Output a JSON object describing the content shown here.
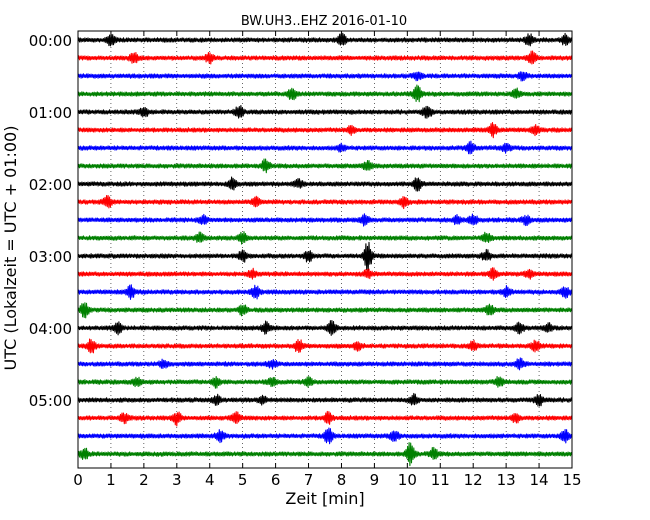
{
  "chart_data": {
    "type": "line",
    "title": "BW.UH3..EHZ 2016-01-10",
    "xlabel": "Zeit  [min]",
    "ylabel": "UTC (Lokalzeit = UTC + 01:00)",
    "xlim": [
      0,
      15
    ],
    "x_ticks": [
      "0",
      "1",
      "2",
      "3",
      "4",
      "5",
      "6",
      "7",
      "8",
      "9",
      "10",
      "11",
      "12",
      "13",
      "14",
      "15"
    ],
    "y_ticks": [
      "00:00",
      "01:00",
      "02:00",
      "03:00",
      "04:00",
      "05:00"
    ],
    "row_minutes": 15,
    "rows": 24,
    "trace_colors": [
      "#000000",
      "#ff0000",
      "#0000ff",
      "#008000"
    ],
    "grid": "vertical dotted lines at each minute",
    "events": [
      {
        "row": 0,
        "t": 1.0,
        "a": 0.8
      },
      {
        "row": 0,
        "t": 8.0,
        "a": 1.0
      },
      {
        "row": 0,
        "t": 13.7,
        "a": 0.9
      },
      {
        "row": 0,
        "t": 14.8,
        "a": 0.8
      },
      {
        "row": 1,
        "t": 1.7,
        "a": 0.8
      },
      {
        "row": 1,
        "t": 4.0,
        "a": 0.7
      },
      {
        "row": 1,
        "t": 13.8,
        "a": 1.0
      },
      {
        "row": 2,
        "t": 10.3,
        "a": 0.6
      },
      {
        "row": 2,
        "t": 13.5,
        "a": 0.6
      },
      {
        "row": 3,
        "t": 6.5,
        "a": 0.9
      },
      {
        "row": 3,
        "t": 10.3,
        "a": 1.2
      },
      {
        "row": 3,
        "t": 13.3,
        "a": 0.7
      },
      {
        "row": 4,
        "t": 2.0,
        "a": 0.8
      },
      {
        "row": 4,
        "t": 4.9,
        "a": 1.0
      },
      {
        "row": 4,
        "t": 10.6,
        "a": 1.1
      },
      {
        "row": 5,
        "t": 8.3,
        "a": 0.6
      },
      {
        "row": 5,
        "t": 12.6,
        "a": 1.0
      },
      {
        "row": 5,
        "t": 13.9,
        "a": 0.6
      },
      {
        "row": 6,
        "t": 8.0,
        "a": 0.5
      },
      {
        "row": 6,
        "t": 11.9,
        "a": 1.0
      },
      {
        "row": 6,
        "t": 13.0,
        "a": 0.6
      },
      {
        "row": 7,
        "t": 5.7,
        "a": 1.0
      },
      {
        "row": 7,
        "t": 8.8,
        "a": 0.8
      },
      {
        "row": 8,
        "t": 4.7,
        "a": 1.0
      },
      {
        "row": 8,
        "t": 6.7,
        "a": 0.6
      },
      {
        "row": 8,
        "t": 10.3,
        "a": 1.0
      },
      {
        "row": 9,
        "t": 0.9,
        "a": 0.9
      },
      {
        "row": 9,
        "t": 5.4,
        "a": 0.6
      },
      {
        "row": 9,
        "t": 9.9,
        "a": 0.8
      },
      {
        "row": 10,
        "t": 3.8,
        "a": 0.7
      },
      {
        "row": 10,
        "t": 8.7,
        "a": 0.8
      },
      {
        "row": 10,
        "t": 11.5,
        "a": 0.7
      },
      {
        "row": 10,
        "t": 12.0,
        "a": 0.8
      },
      {
        "row": 10,
        "t": 13.6,
        "a": 0.6
      },
      {
        "row": 11,
        "t": 3.7,
        "a": 0.7
      },
      {
        "row": 11,
        "t": 5.0,
        "a": 0.9
      },
      {
        "row": 11,
        "t": 12.4,
        "a": 0.7
      },
      {
        "row": 12,
        "t": 5.0,
        "a": 0.9
      },
      {
        "row": 12,
        "t": 7.0,
        "a": 0.9
      },
      {
        "row": 12,
        "t": 8.8,
        "a": 2.2
      },
      {
        "row": 12,
        "t": 12.4,
        "a": 0.8
      },
      {
        "row": 13,
        "t": 5.3,
        "a": 0.7
      },
      {
        "row": 13,
        "t": 8.8,
        "a": 0.6
      },
      {
        "row": 13,
        "t": 12.6,
        "a": 0.8
      },
      {
        "row": 13,
        "t": 13.7,
        "a": 0.6
      },
      {
        "row": 14,
        "t": 1.6,
        "a": 1.0
      },
      {
        "row": 14,
        "t": 5.4,
        "a": 0.9
      },
      {
        "row": 14,
        "t": 13.0,
        "a": 0.7
      },
      {
        "row": 14,
        "t": 14.8,
        "a": 0.8
      },
      {
        "row": 15,
        "t": 0.2,
        "a": 1.1
      },
      {
        "row": 15,
        "t": 5.0,
        "a": 0.8
      },
      {
        "row": 15,
        "t": 12.5,
        "a": 0.8
      },
      {
        "row": 16,
        "t": 1.2,
        "a": 0.9
      },
      {
        "row": 16,
        "t": 5.7,
        "a": 0.8
      },
      {
        "row": 16,
        "t": 7.7,
        "a": 1.0
      },
      {
        "row": 16,
        "t": 13.4,
        "a": 0.9
      },
      {
        "row": 16,
        "t": 14.3,
        "a": 0.6
      },
      {
        "row": 17,
        "t": 0.4,
        "a": 1.1
      },
      {
        "row": 17,
        "t": 6.7,
        "a": 1.0
      },
      {
        "row": 17,
        "t": 8.5,
        "a": 0.6
      },
      {
        "row": 17,
        "t": 12.0,
        "a": 0.7
      },
      {
        "row": 17,
        "t": 13.9,
        "a": 0.8
      },
      {
        "row": 18,
        "t": 2.6,
        "a": 0.6
      },
      {
        "row": 18,
        "t": 5.9,
        "a": 0.6
      },
      {
        "row": 18,
        "t": 13.4,
        "a": 0.9
      },
      {
        "row": 19,
        "t": 1.8,
        "a": 0.6
      },
      {
        "row": 19,
        "t": 4.2,
        "a": 0.7
      },
      {
        "row": 19,
        "t": 5.9,
        "a": 0.6
      },
      {
        "row": 19,
        "t": 7.0,
        "a": 0.6
      },
      {
        "row": 19,
        "t": 12.8,
        "a": 0.8
      },
      {
        "row": 20,
        "t": 4.2,
        "a": 0.7
      },
      {
        "row": 20,
        "t": 5.6,
        "a": 0.7
      },
      {
        "row": 20,
        "t": 10.2,
        "a": 0.8
      },
      {
        "row": 20,
        "t": 14.0,
        "a": 0.8
      },
      {
        "row": 21,
        "t": 1.4,
        "a": 0.7
      },
      {
        "row": 21,
        "t": 3.0,
        "a": 1.0
      },
      {
        "row": 21,
        "t": 4.8,
        "a": 0.8
      },
      {
        "row": 21,
        "t": 7.6,
        "a": 0.9
      },
      {
        "row": 21,
        "t": 13.3,
        "a": 0.7
      },
      {
        "row": 22,
        "t": 4.3,
        "a": 0.8
      },
      {
        "row": 22,
        "t": 7.6,
        "a": 1.2
      },
      {
        "row": 22,
        "t": 9.6,
        "a": 0.9
      },
      {
        "row": 22,
        "t": 14.8,
        "a": 1.0
      },
      {
        "row": 23,
        "t": 0.2,
        "a": 0.8
      },
      {
        "row": 23,
        "t": 10.1,
        "a": 1.8
      },
      {
        "row": 23,
        "t": 10.8,
        "a": 0.9
      }
    ]
  }
}
